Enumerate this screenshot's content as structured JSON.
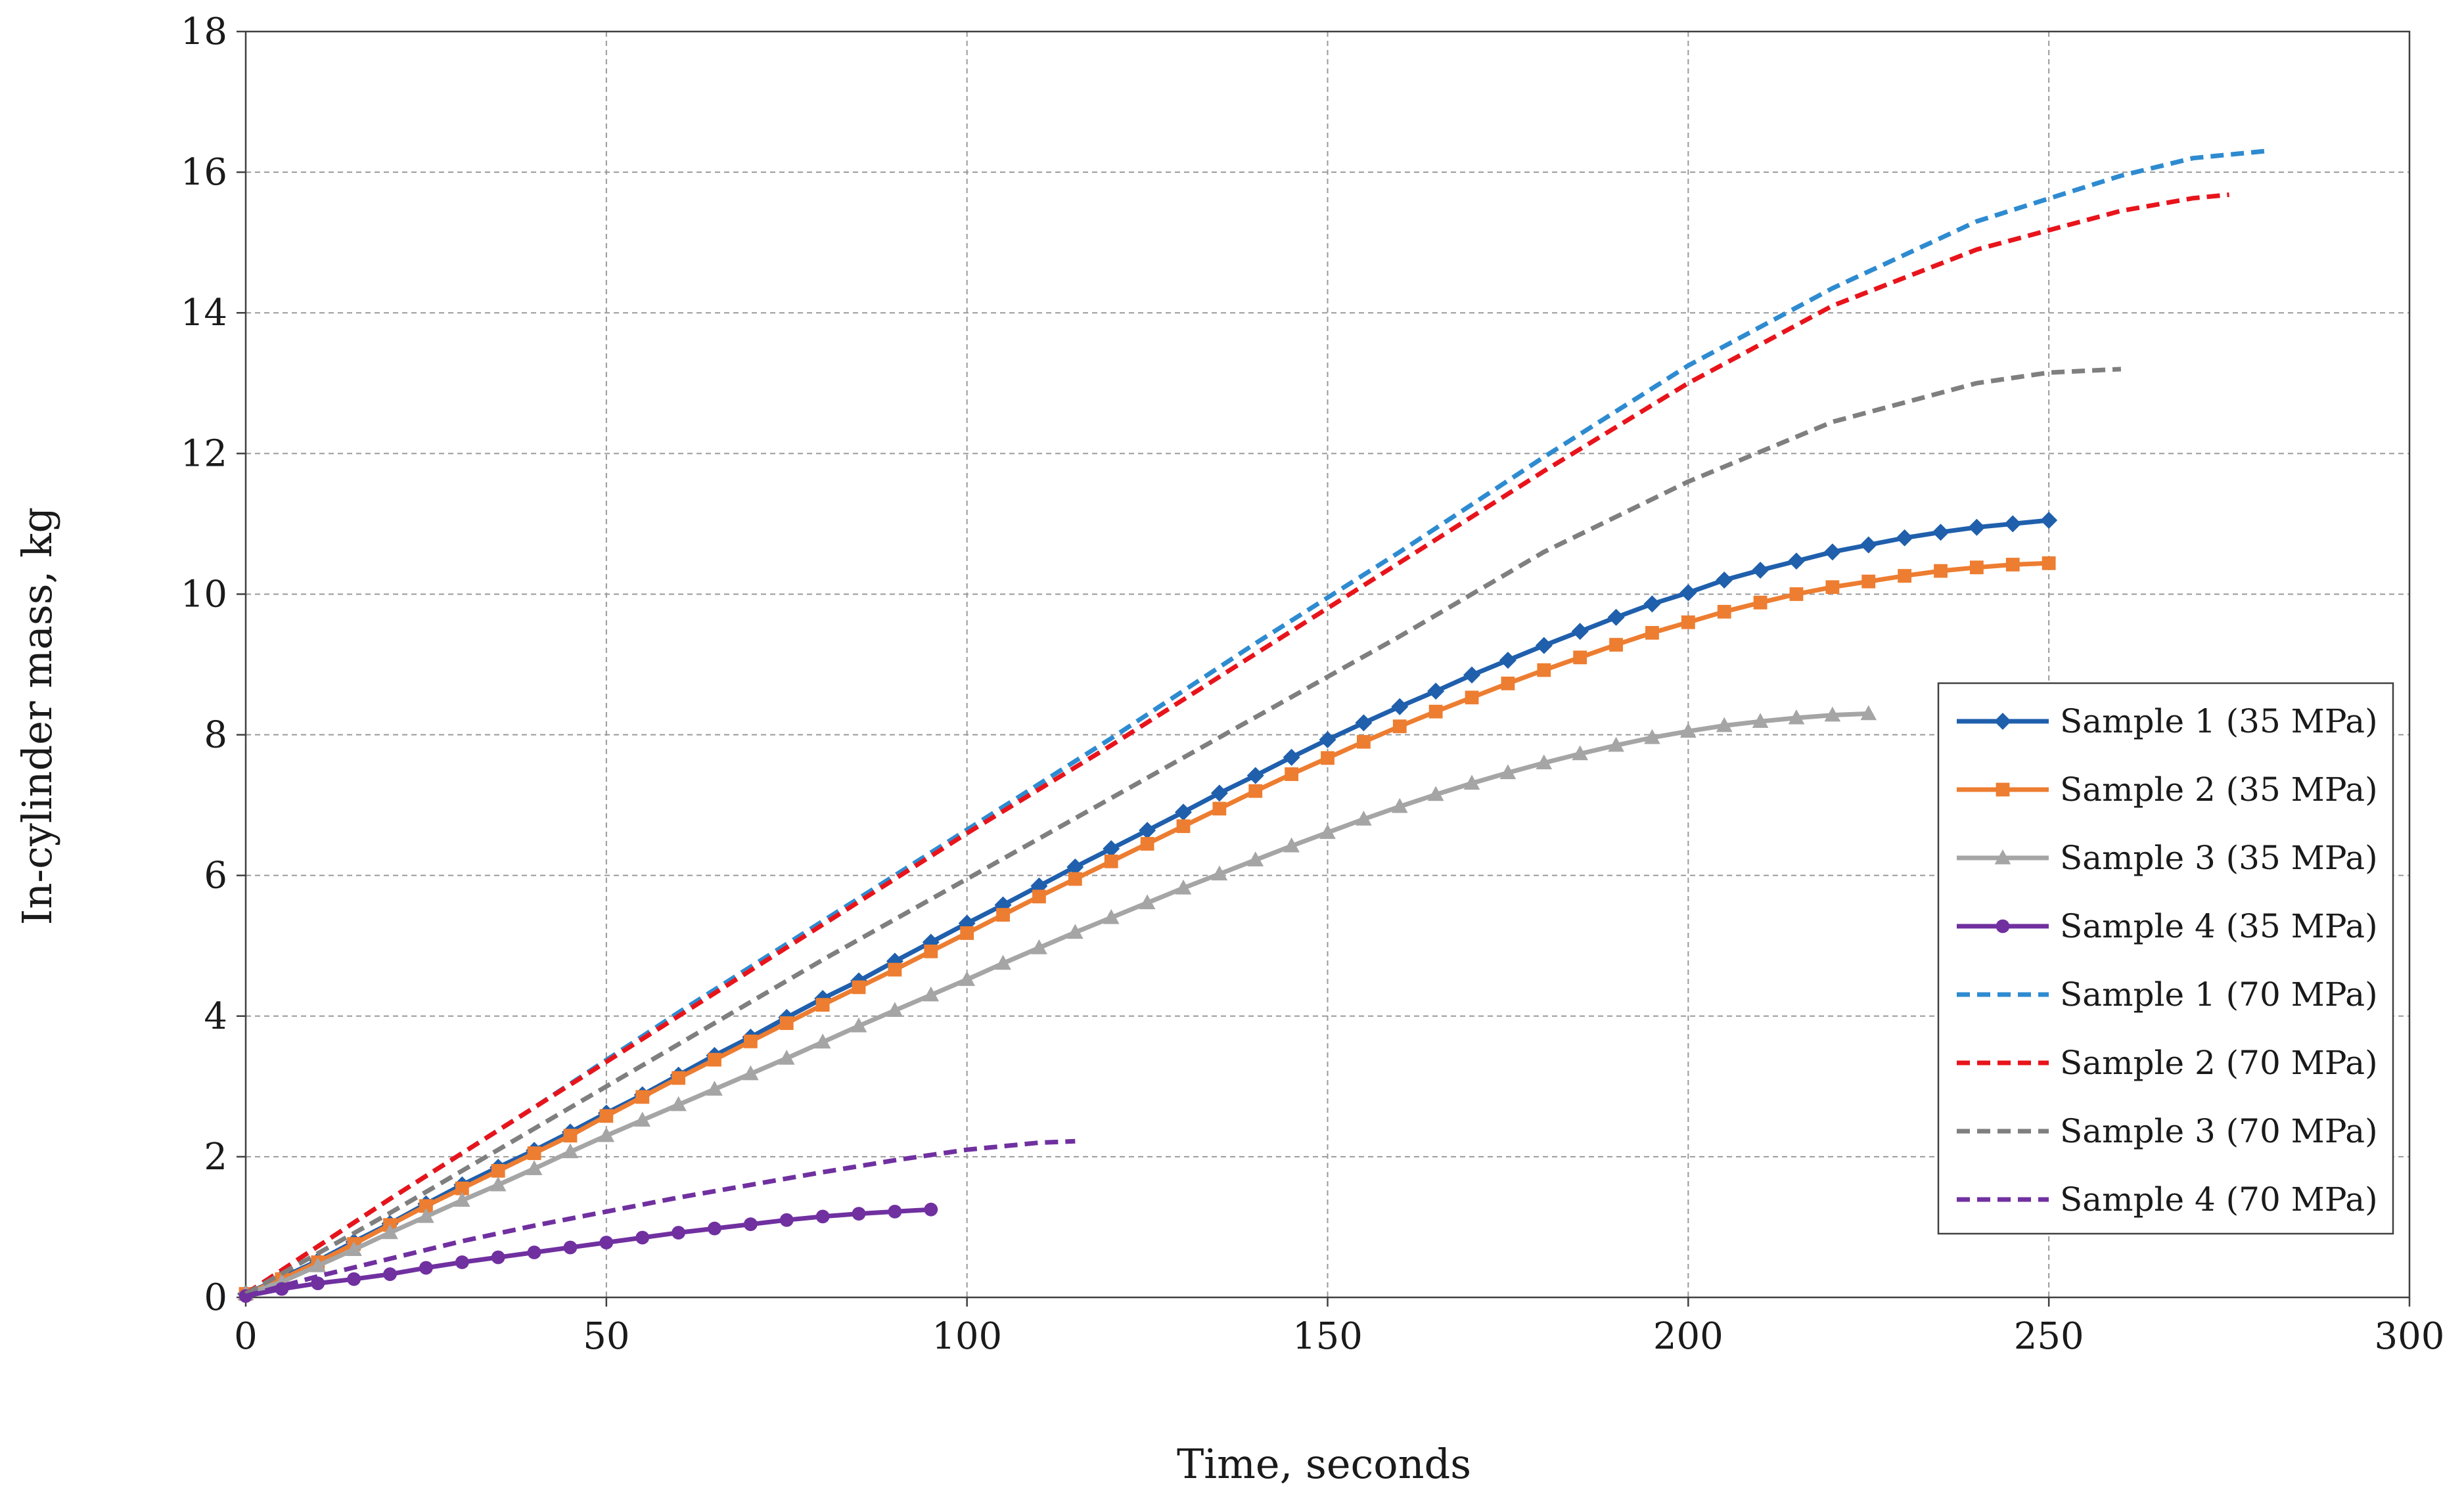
{
  "chart_data": {
    "type": "line",
    "title": "",
    "xlabel": "Time, seconds",
    "ylabel": "In-cylinder mass, kg",
    "xlim": [
      0,
      300
    ],
    "ylim": [
      0,
      18
    ],
    "xticks": [
      0,
      50,
      100,
      150,
      200,
      250,
      300
    ],
    "yticks": [
      0,
      2,
      4,
      6,
      8,
      10,
      12,
      14,
      16,
      18
    ],
    "grid": true,
    "legend_position": "right",
    "series": [
      {
        "name": "Sample 1 (35 MPa)",
        "color": "#1f5fac",
        "style": "solid",
        "marker": "diamond",
        "x": [
          0,
          5,
          10,
          15,
          20,
          25,
          30,
          35,
          40,
          45,
          50,
          55,
          60,
          65,
          70,
          75,
          80,
          85,
          90,
          95,
          100,
          105,
          110,
          115,
          120,
          125,
          130,
          135,
          140,
          145,
          150,
          155,
          160,
          165,
          170,
          175,
          180,
          185,
          190,
          195,
          200,
          205,
          210,
          215,
          220,
          225,
          230,
          235,
          240,
          245,
          250
        ],
        "y": [
          0.05,
          0.28,
          0.52,
          0.79,
          1.05,
          1.33,
          1.6,
          1.85,
          2.09,
          2.35,
          2.62,
          2.88,
          3.16,
          3.44,
          3.7,
          3.98,
          4.25,
          4.5,
          4.78,
          5.05,
          5.32,
          5.58,
          5.85,
          6.12,
          6.38,
          6.64,
          6.9,
          7.17,
          7.42,
          7.68,
          7.93,
          8.17,
          8.4,
          8.62,
          8.85,
          9.06,
          9.27,
          9.47,
          9.67,
          9.86,
          10.02,
          10.2,
          10.34,
          10.47,
          10.6,
          10.7,
          10.8,
          10.88,
          10.95,
          11.0,
          11.05
        ]
      },
      {
        "name": "Sample 2 (35 MPa)",
        "color": "#ed7d31",
        "style": "solid",
        "marker": "square",
        "x": [
          0,
          5,
          10,
          15,
          20,
          25,
          30,
          35,
          40,
          45,
          50,
          55,
          60,
          65,
          70,
          75,
          80,
          85,
          90,
          95,
          100,
          105,
          110,
          115,
          120,
          125,
          130,
          135,
          140,
          145,
          150,
          155,
          160,
          165,
          170,
          175,
          180,
          185,
          190,
          195,
          200,
          205,
          210,
          215,
          220,
          225,
          230,
          235,
          240,
          245,
          250
        ],
        "y": [
          0.05,
          0.26,
          0.5,
          0.76,
          1.03,
          1.3,
          1.55,
          1.8,
          2.05,
          2.3,
          2.58,
          2.85,
          3.12,
          3.38,
          3.64,
          3.9,
          4.16,
          4.41,
          4.66,
          4.92,
          5.18,
          5.44,
          5.7,
          5.95,
          6.2,
          6.45,
          6.7,
          6.95,
          7.2,
          7.44,
          7.67,
          7.9,
          8.12,
          8.33,
          8.53,
          8.73,
          8.92,
          9.1,
          9.28,
          9.45,
          9.6,
          9.75,
          9.88,
          10.0,
          10.1,
          10.18,
          10.26,
          10.33,
          10.38,
          10.42,
          10.44
        ]
      },
      {
        "name": "Sample 3 (35 MPa)",
        "color": "#a5a5a5",
        "style": "solid",
        "marker": "triangle",
        "x": [
          0,
          5,
          10,
          15,
          20,
          25,
          30,
          35,
          40,
          45,
          50,
          55,
          60,
          65,
          70,
          75,
          80,
          85,
          90,
          95,
          100,
          105,
          110,
          115,
          120,
          125,
          130,
          135,
          140,
          145,
          150,
          155,
          160,
          165,
          170,
          175,
          180,
          185,
          190,
          195,
          200,
          205,
          210,
          215,
          220,
          225
        ],
        "y": [
          0.05,
          0.22,
          0.45,
          0.68,
          0.92,
          1.15,
          1.38,
          1.6,
          1.83,
          2.07,
          2.3,
          2.52,
          2.74,
          2.96,
          3.18,
          3.4,
          3.63,
          3.86,
          4.08,
          4.3,
          4.52,
          4.75,
          4.97,
          5.19,
          5.4,
          5.61,
          5.82,
          6.02,
          6.22,
          6.42,
          6.61,
          6.8,
          6.98,
          7.15,
          7.31,
          7.46,
          7.6,
          7.73,
          7.85,
          7.96,
          8.05,
          8.13,
          8.19,
          8.24,
          8.28,
          8.3
        ]
      },
      {
        "name": "Sample 4 (35 MPa)",
        "color": "#7030a0",
        "style": "solid",
        "marker": "circle",
        "x": [
          0,
          5,
          10,
          15,
          20,
          25,
          30,
          35,
          40,
          45,
          50,
          55,
          60,
          65,
          70,
          75,
          80,
          85,
          90,
          95
        ],
        "y": [
          0.02,
          0.12,
          0.2,
          0.26,
          0.33,
          0.42,
          0.5,
          0.57,
          0.64,
          0.71,
          0.78,
          0.85,
          0.92,
          0.98,
          1.04,
          1.1,
          1.15,
          1.19,
          1.22,
          1.25
        ]
      },
      {
        "name": "Sample 1 (70 MPa)",
        "color": "#2e8bd0",
        "style": "dashed",
        "marker": "none",
        "x": [
          0,
          20,
          40,
          60,
          80,
          100,
          120,
          140,
          160,
          180,
          200,
          220,
          240,
          260,
          270,
          280
        ],
        "y": [
          0.05,
          1.4,
          2.7,
          4.05,
          5.35,
          6.65,
          7.95,
          9.3,
          10.6,
          11.95,
          13.25,
          14.35,
          15.3,
          15.95,
          16.2,
          16.3
        ]
      },
      {
        "name": "Sample 2 (70 MPa)",
        "color": "#e8141b",
        "style": "dashed",
        "marker": "none",
        "x": [
          0,
          20,
          40,
          60,
          80,
          100,
          120,
          140,
          160,
          180,
          200,
          220,
          240,
          260,
          270,
          275
        ],
        "y": [
          0.05,
          1.4,
          2.7,
          4.0,
          5.3,
          6.6,
          7.85,
          9.15,
          10.45,
          11.75,
          13.0,
          14.1,
          14.9,
          15.45,
          15.63,
          15.68
        ]
      },
      {
        "name": "Sample 3 (70 MPa)",
        "color": "#7f7f7f",
        "style": "dashed",
        "marker": "none",
        "x": [
          0,
          20,
          40,
          60,
          80,
          100,
          120,
          140,
          160,
          180,
          200,
          220,
          240,
          250,
          260
        ],
        "y": [
          0.05,
          1.2,
          2.4,
          3.6,
          4.8,
          5.95,
          7.1,
          8.25,
          9.4,
          10.6,
          11.6,
          12.45,
          13.0,
          13.15,
          13.2
        ]
      },
      {
        "name": "Sample 4 (70 MPa)",
        "color": "#7030a0",
        "style": "dashed",
        "marker": "none",
        "x": [
          0,
          10,
          20,
          30,
          40,
          50,
          60,
          70,
          80,
          90,
          100,
          110,
          115
        ],
        "y": [
          0.02,
          0.3,
          0.55,
          0.8,
          1.02,
          1.22,
          1.42,
          1.6,
          1.78,
          1.95,
          2.1,
          2.2,
          2.22
        ]
      }
    ]
  }
}
